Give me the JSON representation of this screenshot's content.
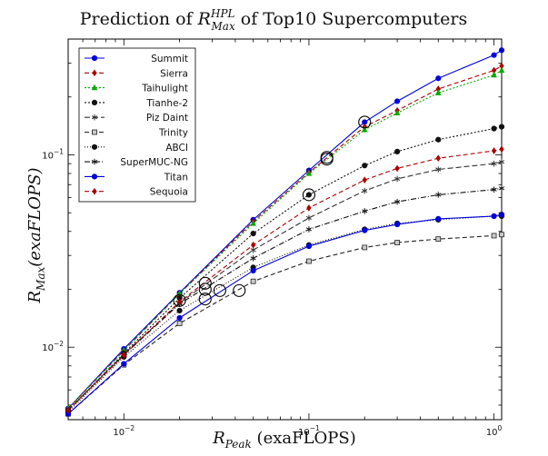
{
  "chart_data": {
    "type": "line",
    "title": {
      "prefix": "Prediction of ",
      "r": "R",
      "sup": "HPL",
      "sub": "Max",
      "suffix": " of Top10 Supercomputers"
    },
    "xlabel": {
      "r": "R",
      "sub": "Peak",
      "suffix": " (exaFLOPS)"
    },
    "ylabel": {
      "r": "R",
      "sub": "Max",
      "suffix": "(exaFLOPS)"
    },
    "xscale": "log",
    "yscale": "log",
    "xlim": [
      0.005,
      1.1
    ],
    "ylim": [
      0.0042,
      0.4
    ],
    "x_ticks": [
      {
        "value": 0.01,
        "base": "10",
        "exp": "−2"
      },
      {
        "value": 0.1,
        "base": "10",
        "exp": "−1"
      },
      {
        "value": 1,
        "base": "10",
        "exp": "0"
      }
    ],
    "y_ticks": [
      {
        "value": 0.01,
        "base": "10",
        "exp": "−2"
      },
      {
        "value": 0.1,
        "base": "10",
        "exp": "−1"
      }
    ],
    "legend_position": "top-left",
    "x": [
      0.005,
      0.01,
      0.02,
      0.05,
      0.1,
      0.2,
      0.3,
      0.5,
      1.0,
      1.1
    ],
    "series": [
      {
        "name": "Summit",
        "color": "#0000dd",
        "dash": "",
        "marker": "circle",
        "values": [
          0.0048,
          0.0098,
          0.0192,
          0.046,
          0.083,
          0.148,
          0.19,
          0.25,
          0.33,
          0.35
        ],
        "highlight": {
          "x": 0.2,
          "y": 0.148
        }
      },
      {
        "name": "Sierra",
        "color": "#aa0000",
        "dash": "5,3",
        "marker": "diamond",
        "values": [
          0.0048,
          0.0096,
          0.019,
          0.045,
          0.081,
          0.14,
          0.17,
          0.22,
          0.275,
          0.29
        ],
        "highlight": {
          "x": 0.125,
          "y": 0.097
        }
      },
      {
        "name": "Taihulight",
        "color": "#00aa00",
        "dash": "2,2",
        "marker": "triangle",
        "values": [
          0.0048,
          0.0096,
          0.019,
          0.044,
          0.08,
          0.135,
          0.165,
          0.21,
          0.26,
          0.275
        ],
        "highlight": {
          "x": 0.125,
          "y": 0.095
        }
      },
      {
        "name": "Tianhe-2",
        "color": "#111111",
        "dash": "2,2",
        "marker": "circle",
        "values": [
          0.0047,
          0.0093,
          0.018,
          0.039,
          0.062,
          0.088,
          0.104,
          0.12,
          0.137,
          0.14
        ],
        "highlight": {
          "x": 0.1,
          "y": 0.062
        }
      },
      {
        "name": "Piz Daint",
        "color": "#333333",
        "dash": "6,3",
        "marker": "star",
        "values": [
          0.0047,
          0.0092,
          0.017,
          0.032,
          0.047,
          0.065,
          0.075,
          0.084,
          0.09,
          0.092
        ],
        "highlight": {
          "x": 0.0275,
          "y": 0.0215
        }
      },
      {
        "name": "Trinity",
        "color": "#222222",
        "dash": "5,3",
        "marker": "square",
        "values": [
          0.0045,
          0.0081,
          0.0133,
          0.022,
          0.028,
          0.033,
          0.035,
          0.0365,
          0.038,
          0.0385
        ],
        "highlight": {
          "x": 0.042,
          "y": 0.0197
        }
      },
      {
        "name": "ABCI",
        "color": "#111111",
        "dash": "1,2",
        "marker": "circle",
        "values": [
          0.0046,
          0.0089,
          0.0155,
          0.026,
          0.034,
          0.041,
          0.044,
          0.046,
          0.048,
          0.048
        ],
        "highlight": {
          "x": 0.0275,
          "y": 0.0178
        }
      },
      {
        "name": "SuperMUC-NG",
        "color": "#111111",
        "dash": "6,2,1,2",
        "marker": "star",
        "values": [
          0.0047,
          0.0091,
          0.0168,
          0.029,
          0.041,
          0.051,
          0.057,
          0.062,
          0.066,
          0.067
        ],
        "highlight": {
          "x": 0.0275,
          "y": 0.02
        }
      },
      {
        "name": "Titan",
        "color": "#0000dd",
        "dash": "",
        "marker": "circle",
        "values": [
          0.0045,
          0.0082,
          0.0142,
          0.025,
          0.0335,
          0.0405,
          0.0435,
          0.0465,
          0.048,
          0.049
        ],
        "highlight": {
          "x": 0.033,
          "y": 0.0197
        }
      },
      {
        "name": "Sequoia",
        "color": "#aa0000",
        "dash": "5,3",
        "marker": "diamond",
        "values": [
          0.0047,
          0.0091,
          0.0172,
          0.034,
          0.053,
          0.074,
          0.085,
          0.096,
          0.105,
          0.107
        ],
        "highlight": {
          "x": 0.02,
          "y": 0.0175
        }
      }
    ]
  }
}
